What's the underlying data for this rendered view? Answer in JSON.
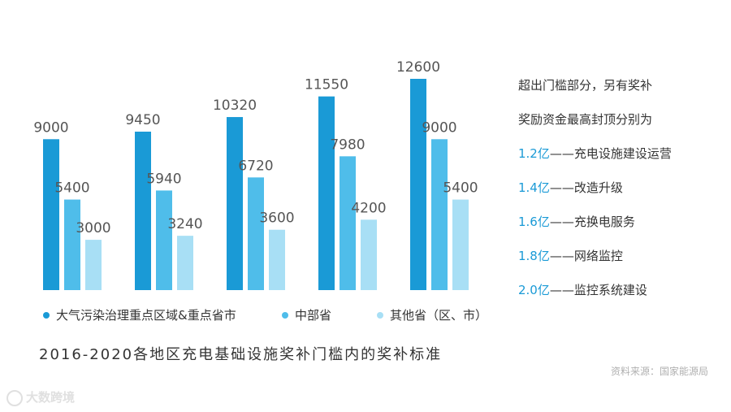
{
  "chart_data": {
    "type": "bar",
    "title": "2016-2020各地区充电基础设施奖补门槛内的奖补标准",
    "categories": [
      "",
      "",
      "",
      "",
      ""
    ],
    "series": [
      {
        "name": "大气污染治理重点区域&重点省市",
        "color": "#1a9ad6",
        "values": [
          9000,
          9450,
          10320,
          11550,
          12600
        ]
      },
      {
        "name": "中部省",
        "color": "#4fbdea",
        "values": [
          5400,
          5940,
          6720,
          7980,
          9000
        ]
      },
      {
        "name": "其他省（区、市）",
        "color": "#a8dff5",
        "values": [
          3000,
          3240,
          3600,
          4200,
          5400
        ]
      }
    ],
    "ylim": [
      0,
      12600
    ],
    "grid": false,
    "legend": "bottom"
  },
  "notes": {
    "line1": "超出门槛部分，另有奖补",
    "line2": "奖励资金最高封顶分别为",
    "items": [
      {
        "amount": "1.2亿",
        "text": "——充电设施建设运营"
      },
      {
        "amount": "1.4亿",
        "text": "——改造升级"
      },
      {
        "amount": "1.6亿",
        "text": "——充换电服务"
      },
      {
        "amount": "1.8亿",
        "text": "——网络监控"
      },
      {
        "amount": "2.0亿",
        "text": "——监控系统建设"
      }
    ]
  },
  "source": "资料来源：国家能源局",
  "watermark": "大数跨境"
}
